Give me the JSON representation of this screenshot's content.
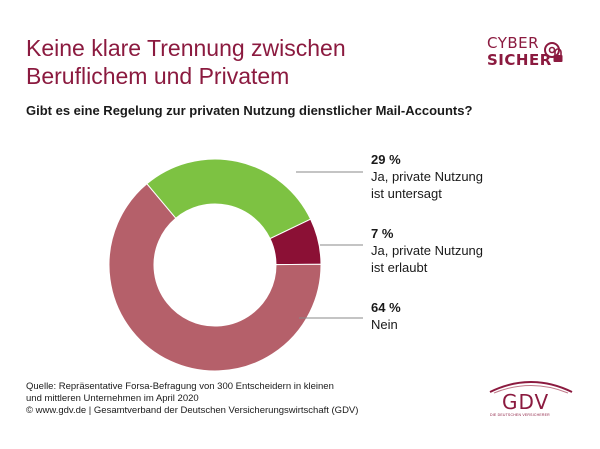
{
  "title": {
    "line1": "Keine klare Trennung zwischen",
    "line2": "Beruflichem und Privatem"
  },
  "logo": {
    "line1": "CYBER",
    "line2": "SICHER"
  },
  "question": "Gibt es eine Regelung zur privaten Nutzung dienstlicher Mail-Accounts?",
  "chart_data": {
    "type": "pie",
    "style": "donut",
    "title": "Gibt es eine Regelung zur privaten Nutzung dienstlicher Mail-Accounts?",
    "categories": [
      "Ja, private Nutzung ist untersagt",
      "Ja, private Nutzung ist erlaubt",
      "Nein"
    ],
    "values": [
      29,
      7,
      64
    ],
    "unit": "%",
    "colors": [
      "#7dc242",
      "#8b1035",
      "#b5606a"
    ],
    "labels": [
      {
        "pct": "29 %",
        "line1": "Ja, private Nutzung",
        "line2": "ist untersagt"
      },
      {
        "pct": "7 %",
        "line1": "Ja, private Nutzung",
        "line2": "ist erlaubt"
      },
      {
        "pct": "64 %",
        "line1": "Nein",
        "line2": ""
      }
    ]
  },
  "footer": {
    "line1": "Quelle: Repräsentative Forsa-Befragung von 300 Entscheidern in kleinen",
    "line2": "und mittleren Unternehmen im April 2020",
    "line3": "© www.gdv.de | Gesamtverband der Deutschen Versicherungswirtschaft (GDV)"
  },
  "gdv": {
    "word": "GDV",
    "tag": "DIE DEUTSCHEN VERSICHERER"
  },
  "colors": {
    "brand": "#8b1a3f",
    "leader": "#888888"
  }
}
